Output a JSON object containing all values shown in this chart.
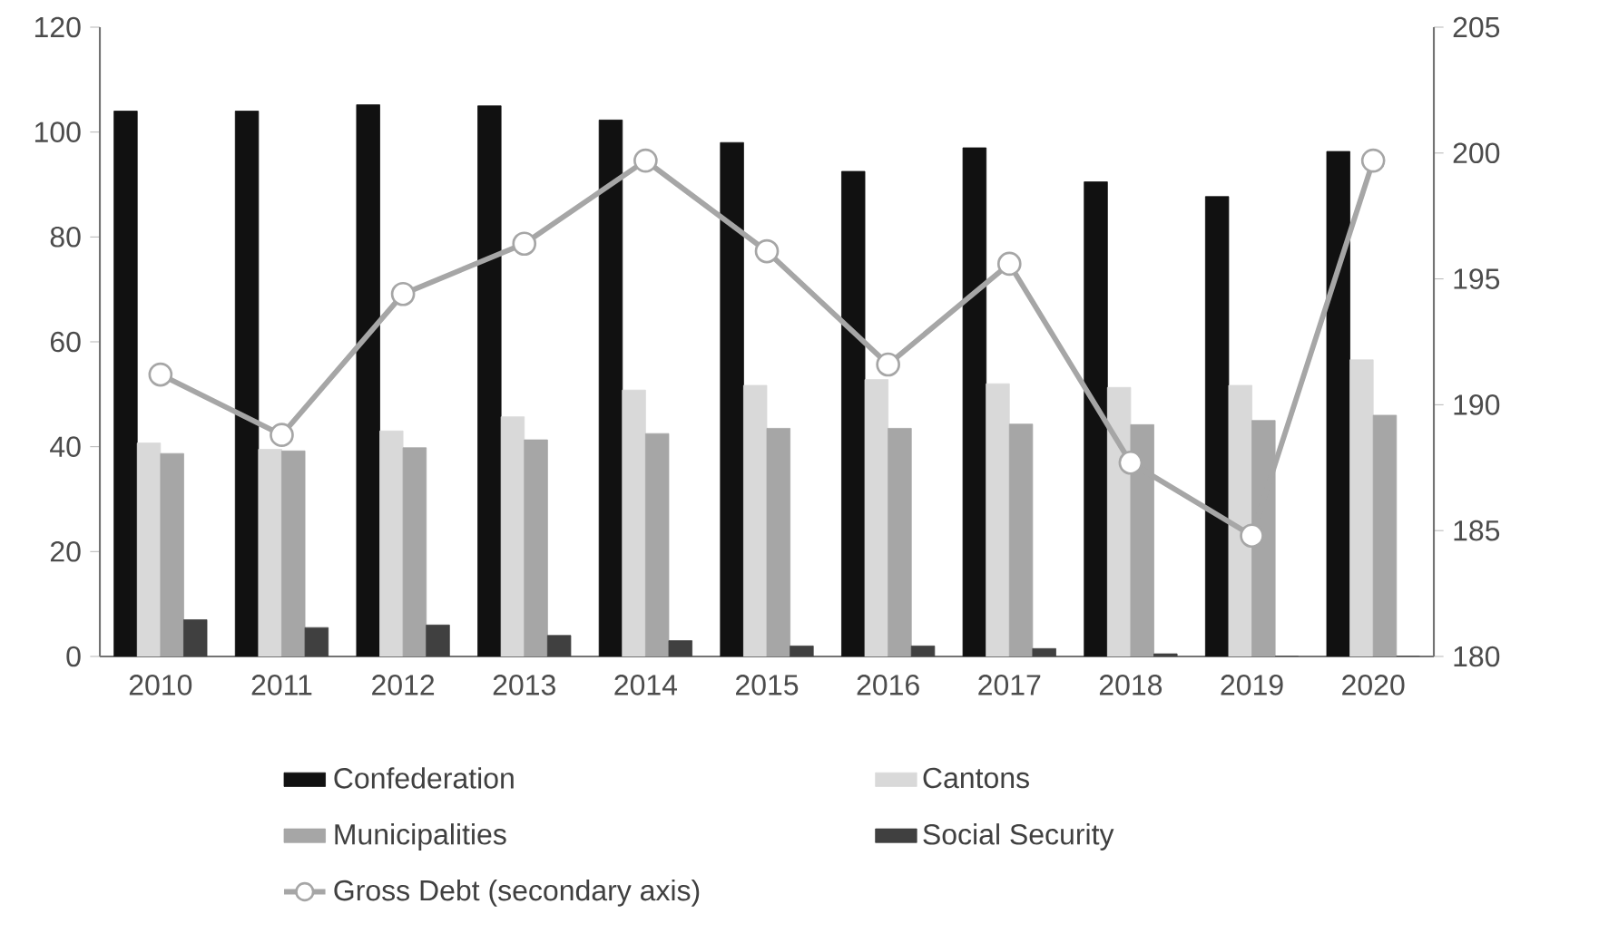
{
  "chart_data": {
    "type": "bar",
    "categories": [
      "2010",
      "2011",
      "2012",
      "2013",
      "2014",
      "2015",
      "2016",
      "2017",
      "2018",
      "2019",
      "2020"
    ],
    "series": [
      {
        "name": "Confederation",
        "color": "#111111",
        "values": [
          104,
          104,
          105.2,
          105,
          102.3,
          98,
          92.5,
          97,
          90.5,
          87.7,
          96.3
        ]
      },
      {
        "name": "Cantons",
        "color": "#d9d9d9",
        "values": [
          40.7,
          39.5,
          43,
          45.7,
          50.8,
          51.7,
          52.8,
          52,
          51.3,
          51.7,
          56.6
        ]
      },
      {
        "name": "Municipalities",
        "color": "#a6a6a6",
        "values": [
          38.7,
          39.2,
          39.8,
          41.3,
          42.5,
          43.5,
          43.5,
          44.3,
          44.2,
          45,
          46
        ]
      },
      {
        "name": "Social Security",
        "color": "#404040",
        "values": [
          7,
          5.5,
          6,
          4,
          3,
          2,
          2,
          1.5,
          0.5,
          0,
          0
        ]
      },
      {
        "name": "Gross Debt (secondary axis)",
        "type": "line",
        "axis": "y2",
        "color": "#a6a6a6",
        "values": [
          191.2,
          188.8,
          194.4,
          196.4,
          199.7,
          196.1,
          191.6,
          195.6,
          187.7,
          184.8,
          199.7
        ]
      }
    ],
    "ylim": [
      0,
      120
    ],
    "yticks": [
      0,
      20,
      40,
      60,
      80,
      100,
      120
    ],
    "y2lim": [
      180,
      205
    ],
    "y2ticks": [
      180,
      185,
      190,
      195,
      200,
      205
    ],
    "legend": "bottom",
    "marker": "circle"
  }
}
